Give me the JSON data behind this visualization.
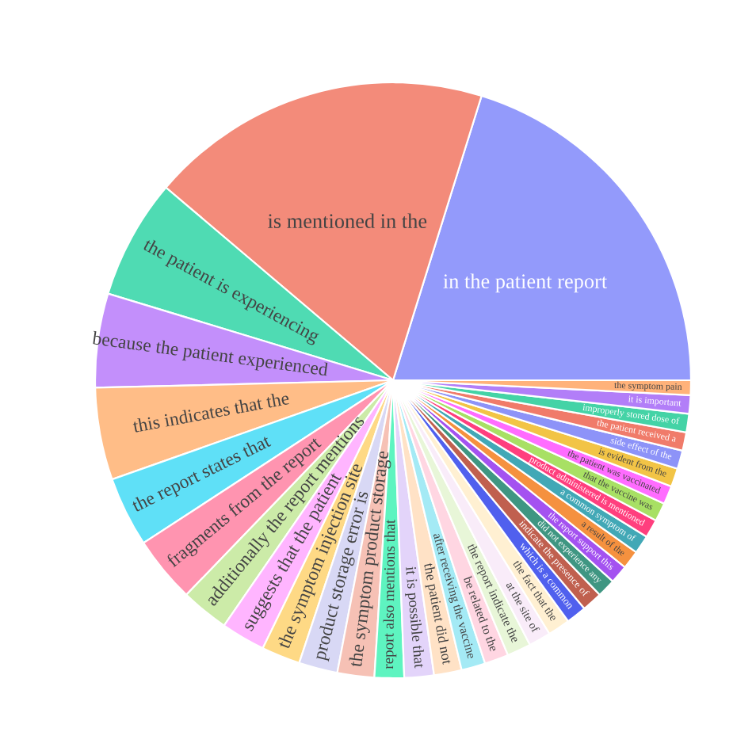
{
  "chart_data": {
    "type": "pie",
    "categories": [
      "in the patient report",
      "is mentioned in the",
      "the patient is experiencing",
      "because the patient experienced",
      "this indicates that the",
      "the report states that",
      "fragments from the report",
      "additionally the report mentions",
      "suggests that the patient",
      "the symptom injection site",
      "product storage error is",
      "the symptom product storage",
      "report also mentions that",
      "it is possible that",
      "the patient did not",
      "after receiving the vaccine",
      "be related to the",
      "the report indicate the",
      "at the site of",
      "the fact that the",
      "which is a common",
      "indicate the presence of",
      "did not experience any",
      "the report support this",
      "a result of the",
      "a common symptom of",
      "product administered is mentioned",
      "that the vaccine was",
      "the patient was vaccinated",
      "is evident from the",
      "side effect of the",
      "the patient received a",
      "improperly stored dose of",
      "it is important",
      "the symptom pain"
    ],
    "values": [
      20.2,
      18.6,
      6.5,
      5.1,
      5.0,
      3.8,
      3.6,
      2.6,
      2.4,
      2.1,
      2.1,
      2.0,
      1.6,
      1.6,
      1.5,
      1.3,
      1.3,
      1.3,
      1.2,
      1.2,
      1.1,
      1.1,
      1.0,
      1.0,
      1.0,
      1.0,
      1.0,
      1.0,
      1.0,
      1.0,
      1.0,
      1.0,
      1.0,
      1.0,
      0.8
    ],
    "colors": [
      "#939afb",
      "#f38b7a",
      "#4fdbb3",
      "#c38ffb",
      "#ffbd87",
      "#5fe0f7",
      "#ff94b0",
      "#cceba8",
      "#ffb5ff",
      "#fed985",
      "#d8d8f5",
      "#f6c1b5",
      "#5ef4c0",
      "#e3d4fa",
      "#ffe2c6",
      "#a4eaf5",
      "#ffd6e2",
      "#e8f6d8",
      "#f9ecf9",
      "#fff0d2",
      "#5060ee",
      "#c0604f",
      "#3f9682",
      "#a452f0",
      "#f5913f",
      "#42a8b6",
      "#ff3f7e",
      "#a8e064",
      "#ff6cff",
      "#f2c446",
      "#8d93f8",
      "#f07b6a",
      "#44d3a6",
      "#b27ef8",
      "#ffb27a"
    ]
  }
}
